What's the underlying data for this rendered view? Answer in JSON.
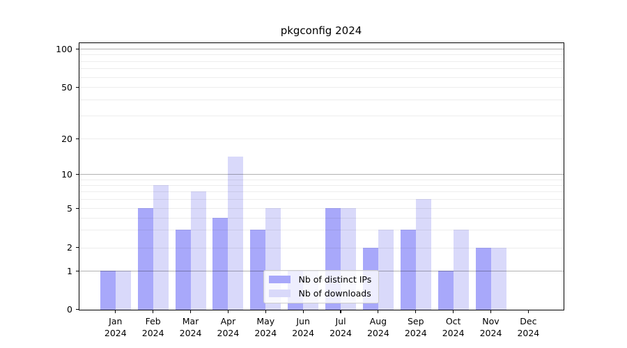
{
  "chart_data": {
    "type": "bar",
    "title": "pkgconfig 2024",
    "categories": [
      "Jan",
      "Feb",
      "Mar",
      "Apr",
      "May",
      "Jun",
      "Jul",
      "Aug",
      "Sep",
      "Oct",
      "Nov",
      "Dec"
    ],
    "x_tick_year": "2024",
    "series": [
      {
        "key": "distinct-ips",
        "name": "Nb of distinct IPs",
        "color": "#a8a8fa",
        "values": [
          1,
          5,
          3,
          4,
          3,
          1,
          5,
          2,
          3,
          1,
          2,
          0
        ]
      },
      {
        "key": "downloads",
        "name": "Nb of downloads",
        "color": "#d9d9fa",
        "values": [
          1,
          8,
          7,
          14,
          5,
          1,
          5,
          3,
          6,
          3,
          2,
          0
        ]
      }
    ],
    "y_ticks": [
      0,
      1,
      2,
      5,
      10,
      20,
      50,
      100
    ],
    "y_major_gridlines": [
      1,
      10,
      100
    ],
    "y_minor_gridlines": [
      2,
      3,
      4,
      5,
      6,
      7,
      8,
      9,
      20,
      30,
      40,
      50,
      60,
      70,
      80,
      90
    ],
    "yscale": "log-like (linear 0-1, logarithmic above 1)",
    "ylim": [
      0,
      112
    ],
    "grid": "on",
    "legend_position": "lower center",
    "colors": {
      "background": "#ffffff",
      "spine": "#000000",
      "major_grid": "rgba(0,0,0,0.30)",
      "minor_grid": "rgba(0,0,0,0.07)",
      "text": "#000000",
      "legend_border": "#cccccc"
    }
  }
}
